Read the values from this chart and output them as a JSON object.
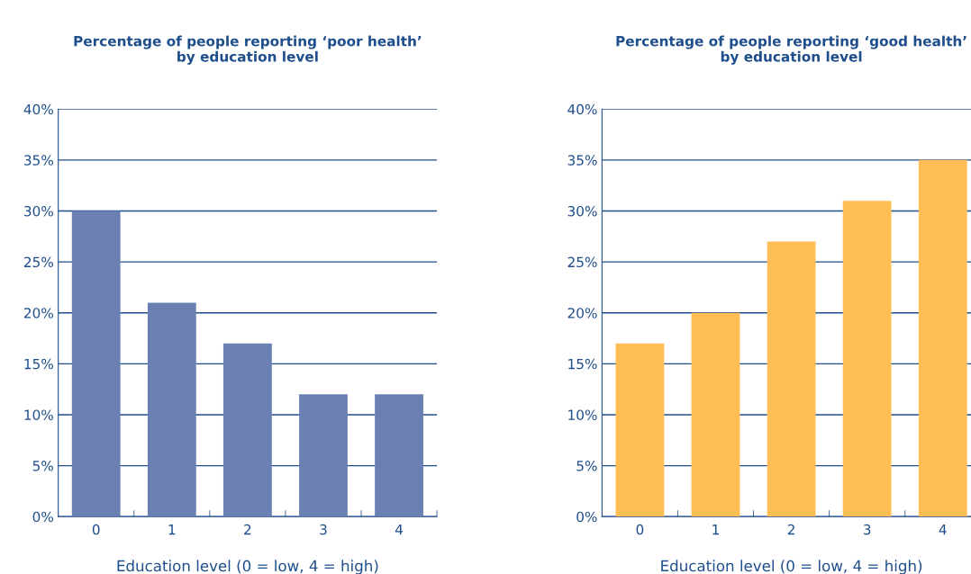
{
  "chart_data": [
    {
      "type": "bar",
      "title": "Percentage of people reporting ‘poor health’\nby education level",
      "xlabel": "Education level (0 = low, 4 = high)",
      "categories": [
        "0",
        "1",
        "2",
        "3",
        "4"
      ],
      "values": [
        30,
        21,
        17,
        12,
        12
      ],
      "color": "#6a80b2",
      "ylim": [
        0,
        40
      ],
      "yticks": [
        {
          "value": 0,
          "label": "0%"
        },
        {
          "value": 5,
          "label": "5%"
        },
        {
          "value": 10,
          "label": "10%"
        },
        {
          "value": 15,
          "label": "15%"
        },
        {
          "value": 20,
          "label": "20%"
        },
        {
          "value": 25,
          "label": "25%"
        },
        {
          "value": 30,
          "label": "30%"
        },
        {
          "value": 35,
          "label": "35%"
        },
        {
          "value": 40,
          "label": "40%"
        }
      ],
      "grid": "y"
    },
    {
      "type": "bar",
      "title": "Percentage of people reporting ‘good health’\nby education level",
      "xlabel": "Education level (0 = low, 4 = high)",
      "categories": [
        "0",
        "1",
        "2",
        "3",
        "4"
      ],
      "values": [
        17,
        20,
        27,
        31,
        35
      ],
      "color": "#ffbe55",
      "ylim": [
        0,
        40
      ],
      "yticks": [
        {
          "value": 0,
          "label": "0%"
        },
        {
          "value": 5,
          "label": "5%"
        },
        {
          "value": 10,
          "label": "10%"
        },
        {
          "value": 15,
          "label": "15%"
        },
        {
          "value": 20,
          "label": "20%"
        },
        {
          "value": 25,
          "label": "25%"
        },
        {
          "value": 30,
          "label": "30%"
        },
        {
          "value": 35,
          "label": "35%"
        },
        {
          "value": 40,
          "label": "40%"
        }
      ],
      "grid": "y"
    }
  ]
}
